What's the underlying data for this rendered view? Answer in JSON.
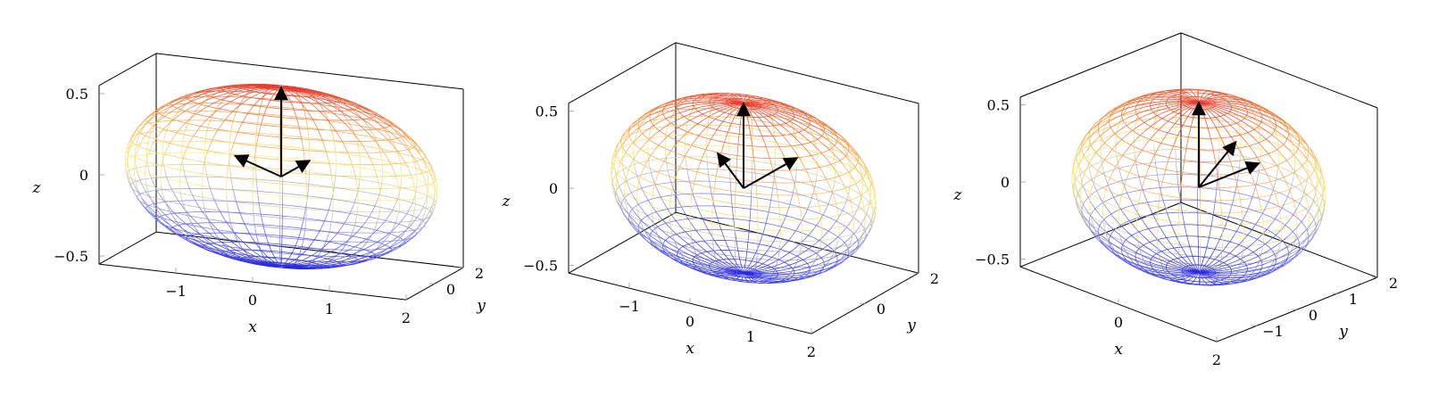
{
  "colors": {
    "colormap": [
      "#2b2bdd",
      "#7d7df0",
      "#f7f07a",
      "#f5a84a",
      "#e63b2b"
    ],
    "box": "#000000",
    "tick": "#9a9a9a",
    "vector": "#000000"
  },
  "chart_data": [
    {
      "type": "surface3d",
      "surface": "ellipsoid",
      "semi_axes": {
        "a": 2,
        "b": 2,
        "c": 0.55
      },
      "view": {
        "azimuth": -15,
        "elevation": 20
      },
      "xlabel": "x",
      "ylabel": "y",
      "zlabel": "z",
      "xlim": [
        -2,
        2
      ],
      "ylim": [
        -2,
        2
      ],
      "zlim": [
        -0.55,
        0.55
      ],
      "xticks": [
        -1,
        0,
        1,
        2
      ],
      "xtick_labels": [
        "−1",
        "0",
        "1",
        "2"
      ],
      "yticks": [
        0,
        2
      ],
      "ytick_labels": [
        "0",
        "2"
      ],
      "zticks": [
        -0.5,
        0,
        0.5
      ],
      "ztick_labels": [
        "−0.5",
        "0",
        "0.5"
      ],
      "vectors": [
        [
          0,
          0,
          0.55
        ],
        [
          0,
          2,
          0
        ],
        [
          -0.9,
          1.6,
          0
        ]
      ]
    },
    {
      "type": "surface3d",
      "surface": "ellipsoid",
      "semi_axes": {
        "a": 2,
        "b": 2,
        "c": 0.55
      },
      "view": {
        "azimuth": -30,
        "elevation": 25
      },
      "xlabel": "x",
      "ylabel": "y",
      "zlabel": "z",
      "xlim": [
        -2,
        2
      ],
      "ylim": [
        -2,
        2
      ],
      "zlim": [
        -0.55,
        0.55
      ],
      "xticks": [
        -1,
        0,
        1,
        2
      ],
      "xtick_labels": [
        "−1",
        "0",
        "1",
        "2"
      ],
      "yticks": [
        0,
        2
      ],
      "ytick_labels": [
        "0",
        "2"
      ],
      "zticks": [
        -0.5,
        0,
        0.5
      ],
      "ztick_labels": [
        "−0.5",
        "0",
        "0.5"
      ],
      "vectors": [
        [
          0,
          0,
          0.55
        ],
        [
          0,
          2,
          0
        ],
        [
          -1.0,
          1.3,
          0
        ]
      ]
    },
    {
      "type": "surface3d",
      "surface": "ellipsoid",
      "semi_axes": {
        "a": 2,
        "b": 2,
        "c": 0.55
      },
      "view": {
        "azimuth": -45,
        "elevation": 25
      },
      "xlabel": "x",
      "ylabel": "y",
      "zlabel": "z",
      "xlim": [
        -2,
        2
      ],
      "ylim": [
        -2,
        2
      ],
      "zlim": [
        -0.55,
        0.55
      ],
      "xticks": [
        0,
        2
      ],
      "xtick_labels": [
        "0",
        "2"
      ],
      "yticks": [
        -1,
        0,
        1,
        2
      ],
      "ytick_labels": [
        "−1",
        "0",
        "1",
        "2"
      ],
      "zticks": [
        -0.5,
        0,
        0.5
      ],
      "ztick_labels": [
        "−0.5",
        "0",
        "0.5"
      ],
      "vectors": [
        [
          0,
          0,
          0.55
        ],
        [
          0,
          1.5,
          0
        ],
        [
          -0.8,
          1.9,
          0
        ]
      ]
    }
  ]
}
